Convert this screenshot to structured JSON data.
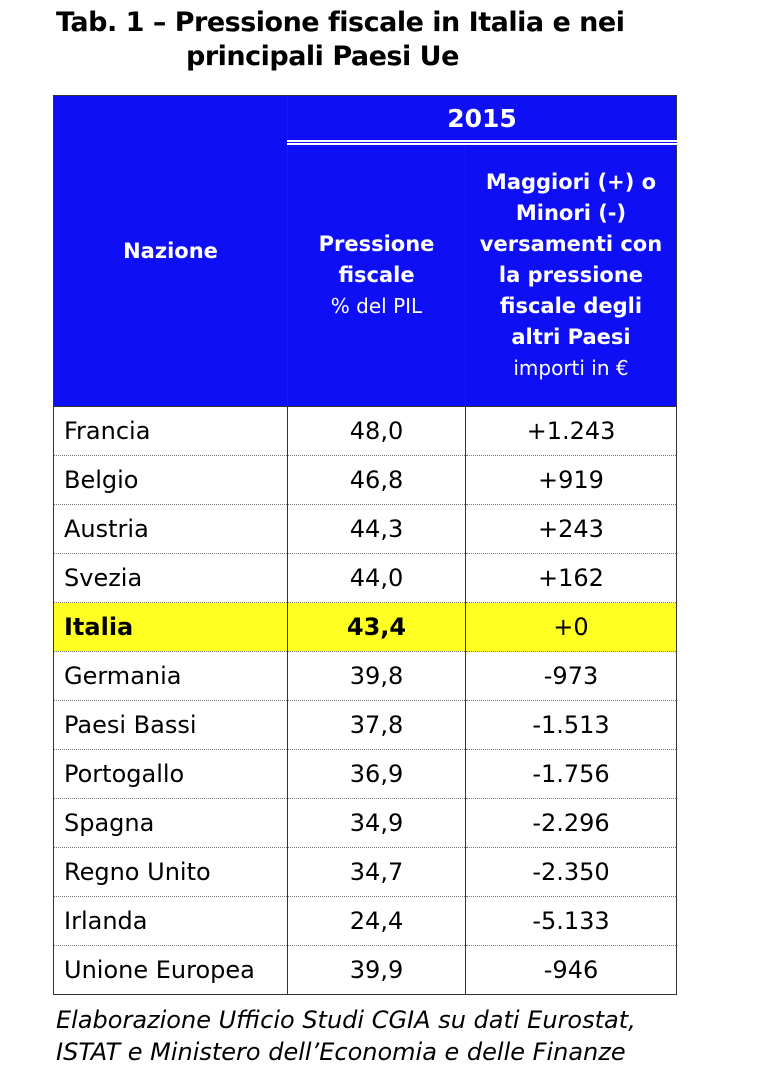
{
  "title_lines": [
    "Tab. 1 – Pressione fiscale in Italia e nei",
    "principali Paesi Ue"
  ],
  "header": {
    "col1": "Nazione",
    "year": "2015",
    "col2": {
      "title": "Pressione fiscale",
      "unit": "% del PIL"
    },
    "col3": {
      "title": "Maggiori (+) o Minori (-) versamenti con la pressione fiscale degli altri Paesi",
      "unit": "importi in €"
    }
  },
  "rows": [
    [
      "Francia",
      "48,0",
      "+1.243"
    ],
    [
      "Belgio",
      "46,8",
      "+919"
    ],
    [
      "Austria",
      "44,3",
      "+243"
    ],
    [
      "Svezia",
      "44,0",
      "+162"
    ],
    [
      "Italia",
      "43,4",
      "+0"
    ],
    [
      "Germania",
      "39,8",
      "-973"
    ],
    [
      "Paesi Bassi",
      "37,8",
      "-1.513"
    ],
    [
      "Portogallo",
      "36,9",
      "-1.756"
    ],
    [
      "Spagna",
      "34,9",
      "-2.296"
    ],
    [
      "Regno Unito",
      "34,7",
      "-2.350"
    ],
    [
      "Irlanda",
      "24,4",
      "-5.133"
    ],
    [
      "Unione Europea",
      "39,9",
      "-946"
    ]
  ],
  "highlighted_row": 4,
  "source_lines": [
    "Elaborazione Ufficio Studi CGIA su dati Eurostat,",
    "ISTAT e Ministero dell’Economia e delle Finanze"
  ]
}
